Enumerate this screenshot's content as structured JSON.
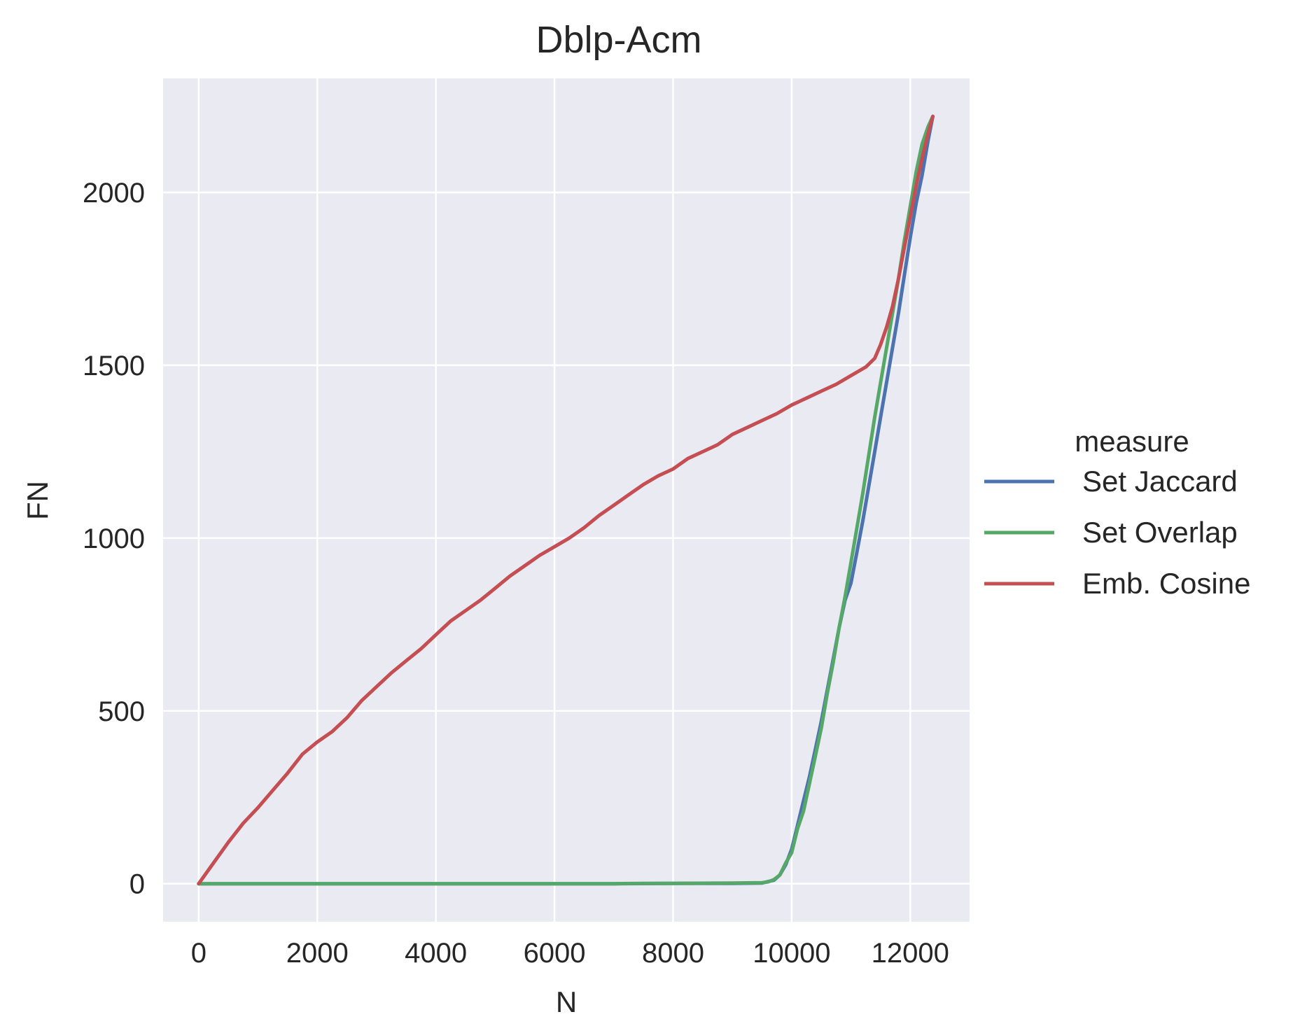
{
  "chart_data": {
    "type": "line",
    "title": "Dblp-Acm",
    "xlabel": "N",
    "ylabel": "FN",
    "xlim": [
      -600,
      13000
    ],
    "ylim": [
      -110,
      2330
    ],
    "xticks": [
      0,
      2000,
      4000,
      6000,
      8000,
      10000,
      12000
    ],
    "yticks": [
      0,
      500,
      1000,
      1500,
      2000
    ],
    "grid": true,
    "legend": {
      "title": "measure",
      "placement": "right"
    },
    "series": [
      {
        "name": "Set Jaccard",
        "color": "#4c72b0",
        "x": [
          0,
          1000,
          3000,
          5000,
          7000,
          8000,
          9000,
          9500,
          9700,
          9800,
          9900,
          10000,
          10100,
          10200,
          10300,
          10400,
          10500,
          10600,
          10700,
          10800,
          10900,
          11000,
          11100,
          11200,
          11300,
          11400,
          11500,
          11600,
          11700,
          11800,
          11900,
          12000,
          12100,
          12200,
          12300,
          12380
        ],
        "y": [
          0,
          0,
          0,
          0,
          0,
          1,
          1,
          2,
          10,
          25,
          55,
          100,
          170,
          240,
          310,
          390,
          470,
          560,
          650,
          740,
          820,
          870,
          960,
          1050,
          1150,
          1250,
          1350,
          1450,
          1550,
          1650,
          1760,
          1870,
          1970,
          2050,
          2150,
          2220
        ]
      },
      {
        "name": "Set Overlap",
        "color": "#55a868",
        "x": [
          0,
          1000,
          3000,
          5000,
          7000,
          7500,
          8000,
          9000,
          9500,
          9600,
          9700,
          9800,
          9900,
          10000,
          10100,
          10200,
          10300,
          10400,
          10500,
          10600,
          10700,
          10800,
          10900,
          11000,
          11100,
          11200,
          11300,
          11400,
          11500,
          11600,
          11700,
          11800,
          11900,
          12000,
          12100,
          12200,
          12300,
          12380
        ],
        "y": [
          0,
          0,
          0,
          0,
          0,
          1,
          1,
          2,
          3,
          5,
          12,
          25,
          60,
          90,
          160,
          210,
          290,
          370,
          450,
          550,
          640,
          740,
          830,
          930,
          1030,
          1130,
          1240,
          1350,
          1450,
          1550,
          1650,
          1750,
          1860,
          1960,
          2060,
          2140,
          2190,
          2220
        ]
      },
      {
        "name": "Emb. Cosine",
        "color": "#c44e52",
        "x": [
          0,
          250,
          500,
          750,
          1000,
          1250,
          1500,
          1750,
          2000,
          2250,
          2500,
          2750,
          3000,
          3250,
          3500,
          3750,
          4000,
          4250,
          4500,
          4750,
          5000,
          5250,
          5500,
          5750,
          6000,
          6250,
          6500,
          6750,
          7000,
          7250,
          7500,
          7750,
          8000,
          8250,
          8500,
          8750,
          9000,
          9250,
          9500,
          9750,
          10000,
          10250,
          10500,
          10750,
          11000,
          11250,
          11400,
          11500,
          11600,
          11700,
          11800,
          11900,
          12000,
          12100,
          12200,
          12300,
          12380
        ],
        "y": [
          0,
          60,
          120,
          175,
          220,
          270,
          320,
          375,
          410,
          440,
          480,
          530,
          570,
          610,
          645,
          680,
          720,
          760,
          790,
          820,
          855,
          890,
          920,
          950,
          975,
          1000,
          1030,
          1065,
          1095,
          1125,
          1155,
          1180,
          1200,
          1230,
          1250,
          1270,
          1300,
          1320,
          1340,
          1360,
          1385,
          1405,
          1425,
          1445,
          1470,
          1495,
          1520,
          1560,
          1610,
          1670,
          1750,
          1840,
          1930,
          2020,
          2100,
          2170,
          2220
        ]
      }
    ]
  }
}
